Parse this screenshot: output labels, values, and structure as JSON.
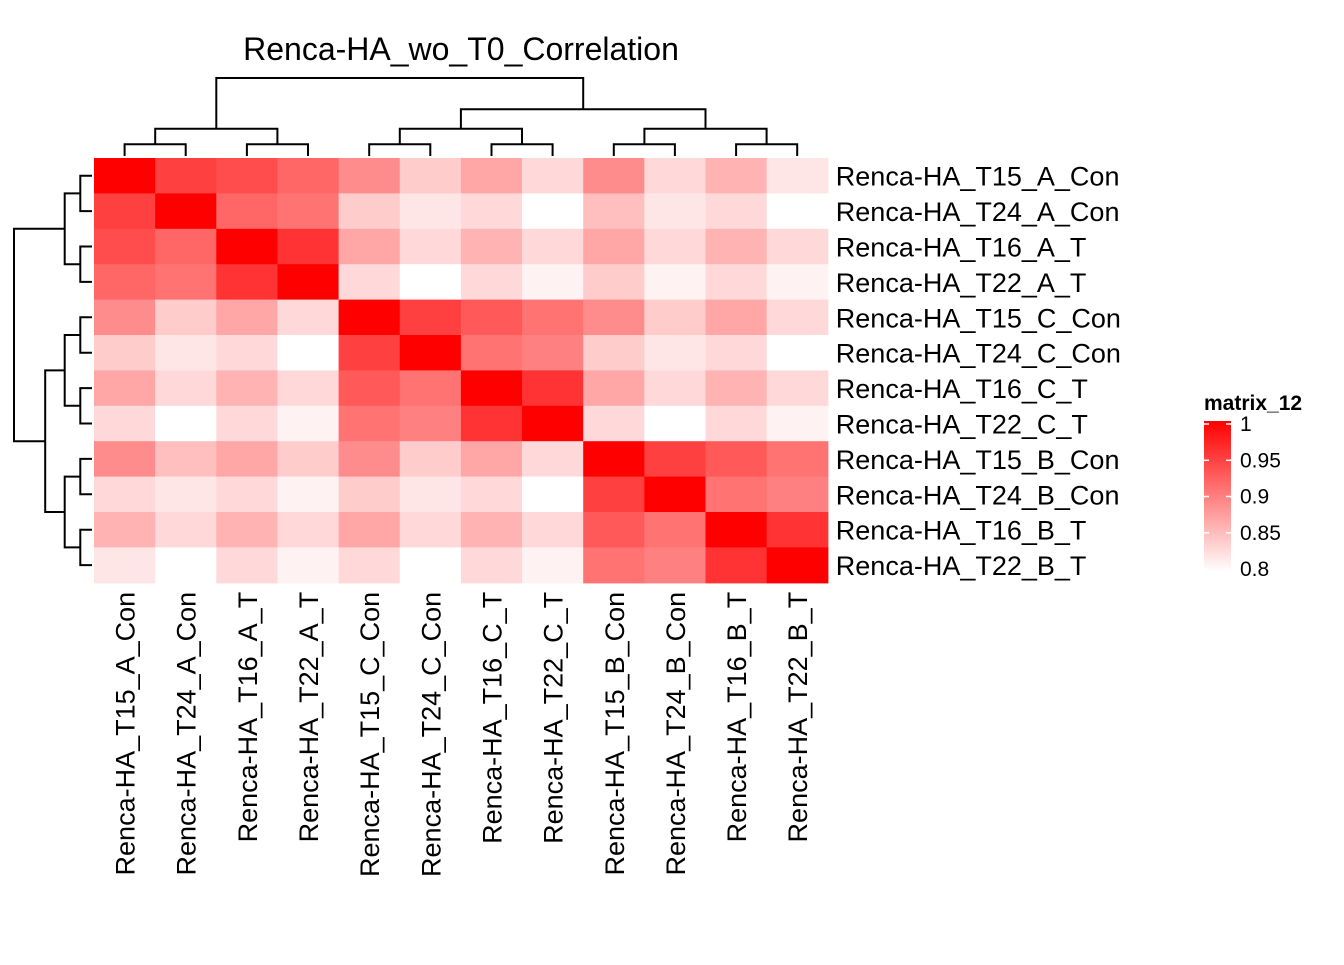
{
  "chart_data": {
    "type": "heatmap",
    "title": "Renca-HA_wo_T0_Correlation",
    "rows": [
      "Renca-HA_T15_A_Con",
      "Renca-HA_T24_A_Con",
      "Renca-HA_T16_A_T",
      "Renca-HA_T22_A_T",
      "Renca-HA_T15_C_Con",
      "Renca-HA_T24_C_Con",
      "Renca-HA_T16_C_T",
      "Renca-HA_T22_C_T",
      "Renca-HA_T15_B_Con",
      "Renca-HA_T24_B_Con",
      "Renca-HA_T16_B_T",
      "Renca-HA_T22_B_T"
    ],
    "columns": [
      "Renca-HA_T15_A_Con",
      "Renca-HA_T24_A_Con",
      "Renca-HA_T16_A_T",
      "Renca-HA_T22_A_T",
      "Renca-HA_T15_C_Con",
      "Renca-HA_T24_C_Con",
      "Renca-HA_T16_C_T",
      "Renca-HA_T22_C_T",
      "Renca-HA_T15_B_Con",
      "Renca-HA_T24_B_Con",
      "Renca-HA_T16_B_T",
      "Renca-HA_T22_B_T"
    ],
    "values": [
      [
        1.0,
        0.95,
        0.94,
        0.92,
        0.89,
        0.84,
        0.87,
        0.83,
        0.89,
        0.83,
        0.86,
        0.82
      ],
      [
        0.95,
        1.0,
        0.92,
        0.91,
        0.84,
        0.82,
        0.83,
        0.8,
        0.85,
        0.82,
        0.83,
        0.8
      ],
      [
        0.94,
        0.92,
        1.0,
        0.96,
        0.87,
        0.83,
        0.86,
        0.83,
        0.87,
        0.83,
        0.86,
        0.83
      ],
      [
        0.92,
        0.91,
        0.96,
        1.0,
        0.83,
        0.8,
        0.83,
        0.81,
        0.84,
        0.81,
        0.83,
        0.81
      ],
      [
        0.89,
        0.84,
        0.87,
        0.83,
        1.0,
        0.95,
        0.93,
        0.91,
        0.89,
        0.84,
        0.87,
        0.83
      ],
      [
        0.84,
        0.82,
        0.83,
        0.8,
        0.95,
        1.0,
        0.91,
        0.9,
        0.84,
        0.82,
        0.83,
        0.8
      ],
      [
        0.87,
        0.83,
        0.86,
        0.83,
        0.93,
        0.91,
        1.0,
        0.96,
        0.87,
        0.83,
        0.86,
        0.83
      ],
      [
        0.83,
        0.8,
        0.83,
        0.81,
        0.91,
        0.9,
        0.96,
        1.0,
        0.83,
        0.79,
        0.83,
        0.81
      ],
      [
        0.89,
        0.85,
        0.87,
        0.84,
        0.89,
        0.84,
        0.87,
        0.83,
        1.0,
        0.95,
        0.93,
        0.91
      ],
      [
        0.83,
        0.82,
        0.83,
        0.81,
        0.84,
        0.82,
        0.83,
        0.79,
        0.95,
        1.0,
        0.91,
        0.9
      ],
      [
        0.86,
        0.83,
        0.86,
        0.83,
        0.87,
        0.83,
        0.86,
        0.83,
        0.93,
        0.91,
        1.0,
        0.96
      ],
      [
        0.82,
        0.8,
        0.83,
        0.81,
        0.83,
        0.8,
        0.83,
        0.81,
        0.91,
        0.9,
        0.96,
        1.0
      ]
    ],
    "colorscale": {
      "min": 0.8,
      "max": 1,
      "low_color": "#ffffff",
      "high_color": "#ff0000"
    },
    "legend": {
      "title": "matrix_12",
      "ticks": [
        1,
        0.95,
        0.9,
        0.85,
        0.8
      ],
      "tick_labels": [
        "1",
        "0.95",
        "0.9",
        "0.85",
        "0.8"
      ],
      "position": "right"
    },
    "dendrograms": {
      "rows": "left",
      "columns": "top"
    },
    "grid": false
  }
}
